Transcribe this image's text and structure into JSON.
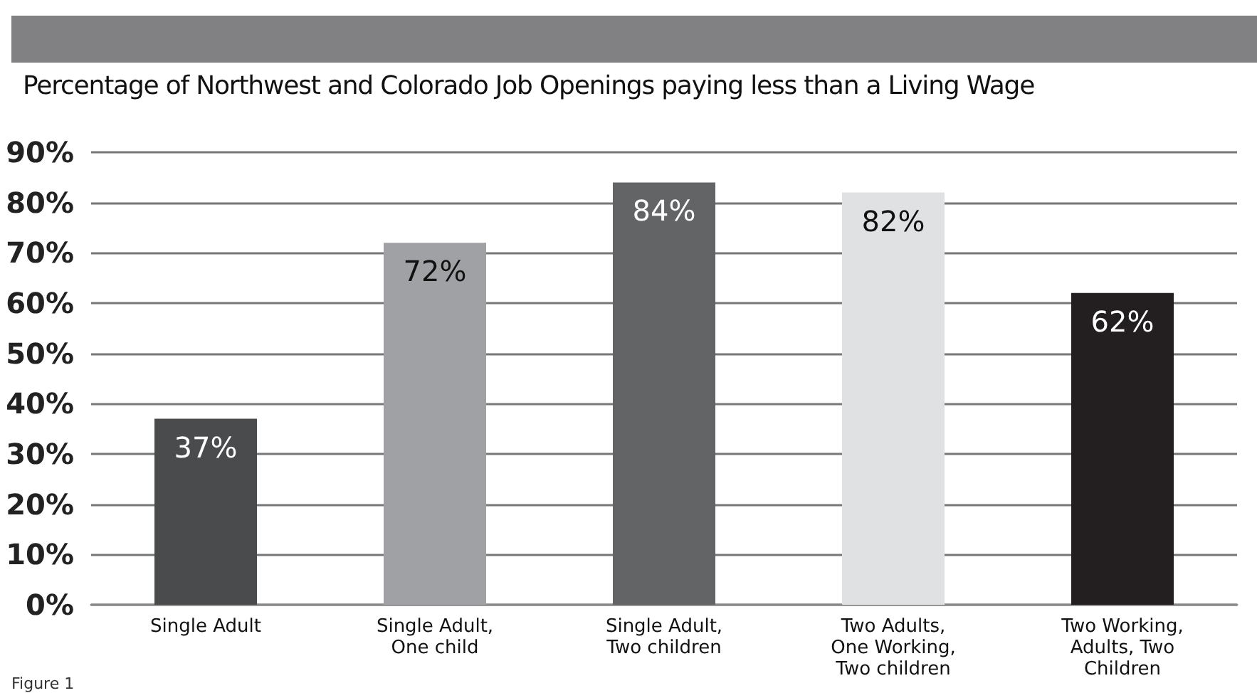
{
  "chart_data": {
    "type": "bar",
    "title": "Percentage of Northwest and Colorado Job Openings paying less than a Living Wage",
    "categories": [
      "Single Adult",
      "Single Adult,\nOne child",
      "Single Adult,\nTwo children",
      "Two Adults,\nOne Working,\nTwo children",
      "Two Working,\nAdults, Two\nChildren"
    ],
    "values": [
      37,
      72,
      84,
      82,
      62
    ],
    "colors": [
      "#4a4b4d",
      "#a0a1a4",
      "#636466",
      "#e0e1e3",
      "#231f20"
    ],
    "value_labels": [
      "37%",
      "72%",
      "84%",
      "82%",
      "62%"
    ],
    "ylim": [
      0,
      90
    ],
    "yticks": [
      {
        "value": 0,
        "label": "0%"
      },
      {
        "value": 10,
        "label": "10%"
      },
      {
        "value": 20,
        "label": "20%"
      },
      {
        "value": 30,
        "label": "30%"
      },
      {
        "value": 40,
        "label": "40%"
      },
      {
        "value": 50,
        "label": "50%"
      },
      {
        "value": 60,
        "label": "60%"
      },
      {
        "value": 70,
        "label": "70%"
      },
      {
        "value": 80,
        "label": "80%"
      },
      {
        "value": 90,
        "label": "90%"
      }
    ],
    "grid": "y",
    "annotations": [
      "Figure 1"
    ]
  }
}
